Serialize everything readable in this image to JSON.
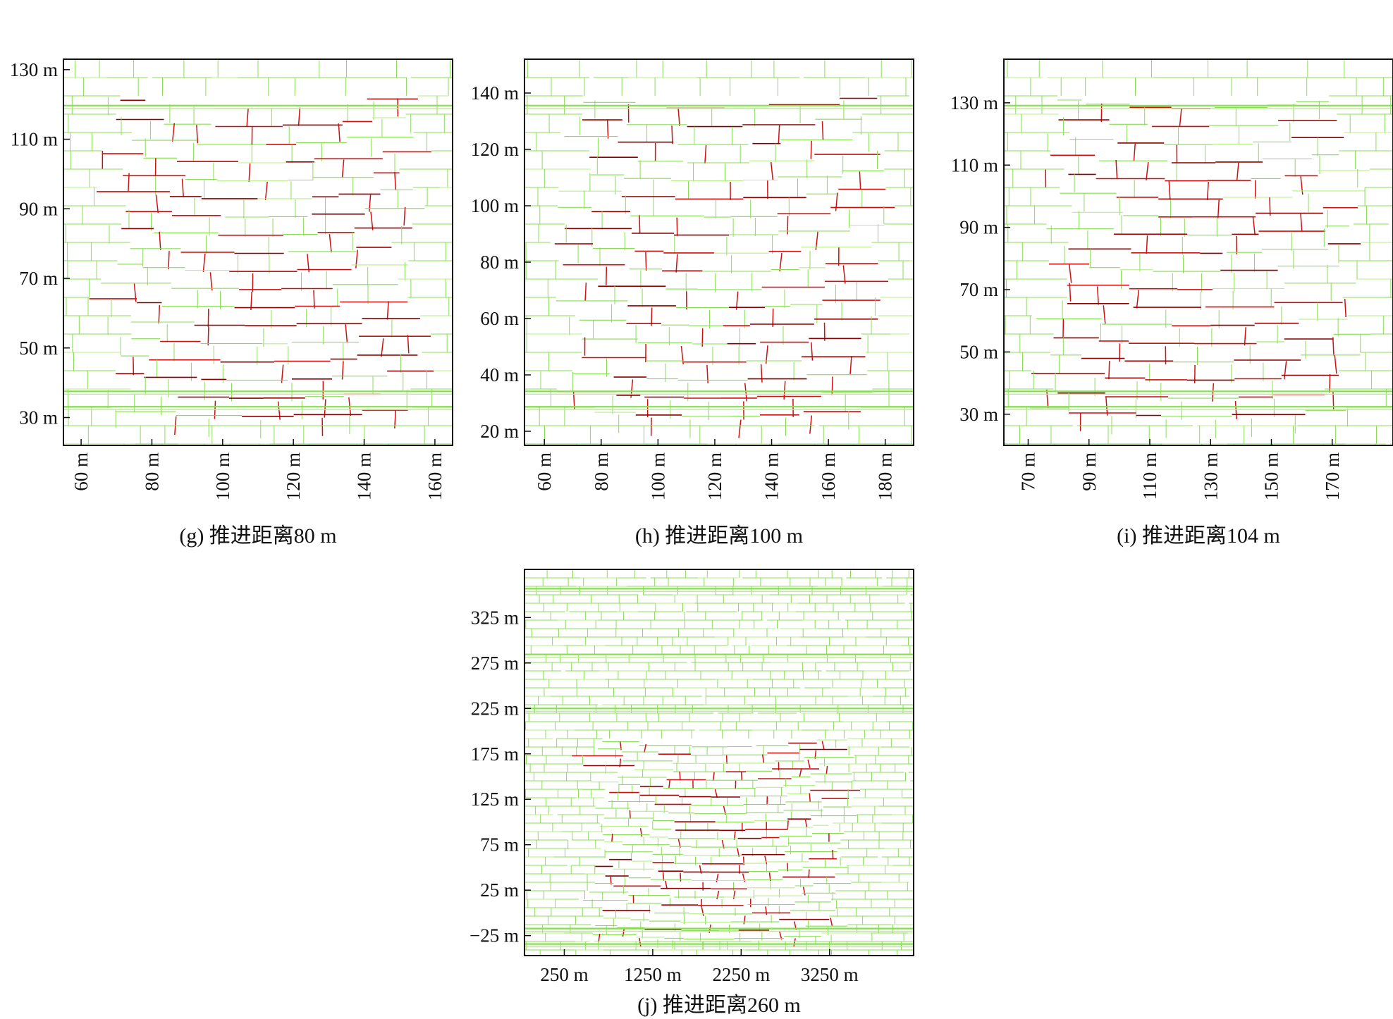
{
  "colors": {
    "joint": "#88dd55",
    "joint_light": "#b8ee88",
    "fracture": "#cc1111",
    "fracture_dark": "#8b0000",
    "axis": "#111111",
    "background": "#ffffff"
  },
  "panels": [
    {
      "id": "g",
      "caption": "(g) 推进距离80 m",
      "xlim": [
        55,
        165
      ],
      "ylim": [
        22,
        133
      ],
      "x_ticks": [
        "60 m",
        "80 m",
        "100 m",
        "120 m",
        "140 m",
        "160 m"
      ],
      "x_tick_values": [
        60,
        80,
        100,
        120,
        140,
        160
      ],
      "x_tick_orientation": "vertical",
      "y_ticks": [
        "30 m",
        "50 m",
        "70 m",
        "90 m",
        "110 m",
        "130 m"
      ],
      "y_tick_values": [
        30,
        50,
        70,
        90,
        110,
        130
      ]
    },
    {
      "id": "h",
      "caption": "(h) 推进距离100 m",
      "xlim": [
        53,
        190
      ],
      "ylim": [
        15,
        152
      ],
      "x_ticks": [
        "60 m",
        "80 m",
        "100 m",
        "120 m",
        "140 m",
        "160 m",
        "180 m"
      ],
      "x_tick_values": [
        60,
        80,
        100,
        120,
        140,
        160,
        180
      ],
      "x_tick_orientation": "vertical",
      "y_ticks": [
        "20 m",
        "40 m",
        "60 m",
        "80 m",
        "100 m",
        "120 m",
        "140 m"
      ],
      "y_tick_values": [
        20,
        40,
        60,
        80,
        100,
        120,
        140
      ]
    },
    {
      "id": "i",
      "caption": "(i) 推进距离104 m",
      "xlim": [
        62,
        190
      ],
      "ylim": [
        20,
        144
      ],
      "x_ticks": [
        "70 m",
        "90 m",
        "110 m",
        "130 m",
        "150 m",
        "170 m"
      ],
      "x_tick_values": [
        70,
        90,
        110,
        130,
        150,
        170
      ],
      "x_tick_orientation": "vertical",
      "y_ticks": [
        "30 m",
        "50 m",
        "70 m",
        "90 m",
        "110 m",
        "130 m"
      ],
      "y_tick_values": [
        30,
        50,
        70,
        90,
        110,
        130
      ]
    },
    {
      "id": "j",
      "caption": "(j) 推进距离260 m",
      "xlim": [
        -200,
        4200
      ],
      "ylim": [
        -47,
        378
      ],
      "x_ticks": [
        "250 m",
        "1250 m",
        "2250 m",
        "3250 m"
      ],
      "x_tick_values": [
        250,
        1250,
        2250,
        3250
      ],
      "x_tick_orientation": "horizontal",
      "y_ticks": [
        "−25 m",
        "25 m",
        "75 m",
        "125 m",
        "175 m",
        "225 m",
        "275 m",
        "325 m"
      ],
      "y_tick_values": [
        -25,
        25,
        75,
        125,
        175,
        225,
        275,
        325
      ]
    }
  ]
}
